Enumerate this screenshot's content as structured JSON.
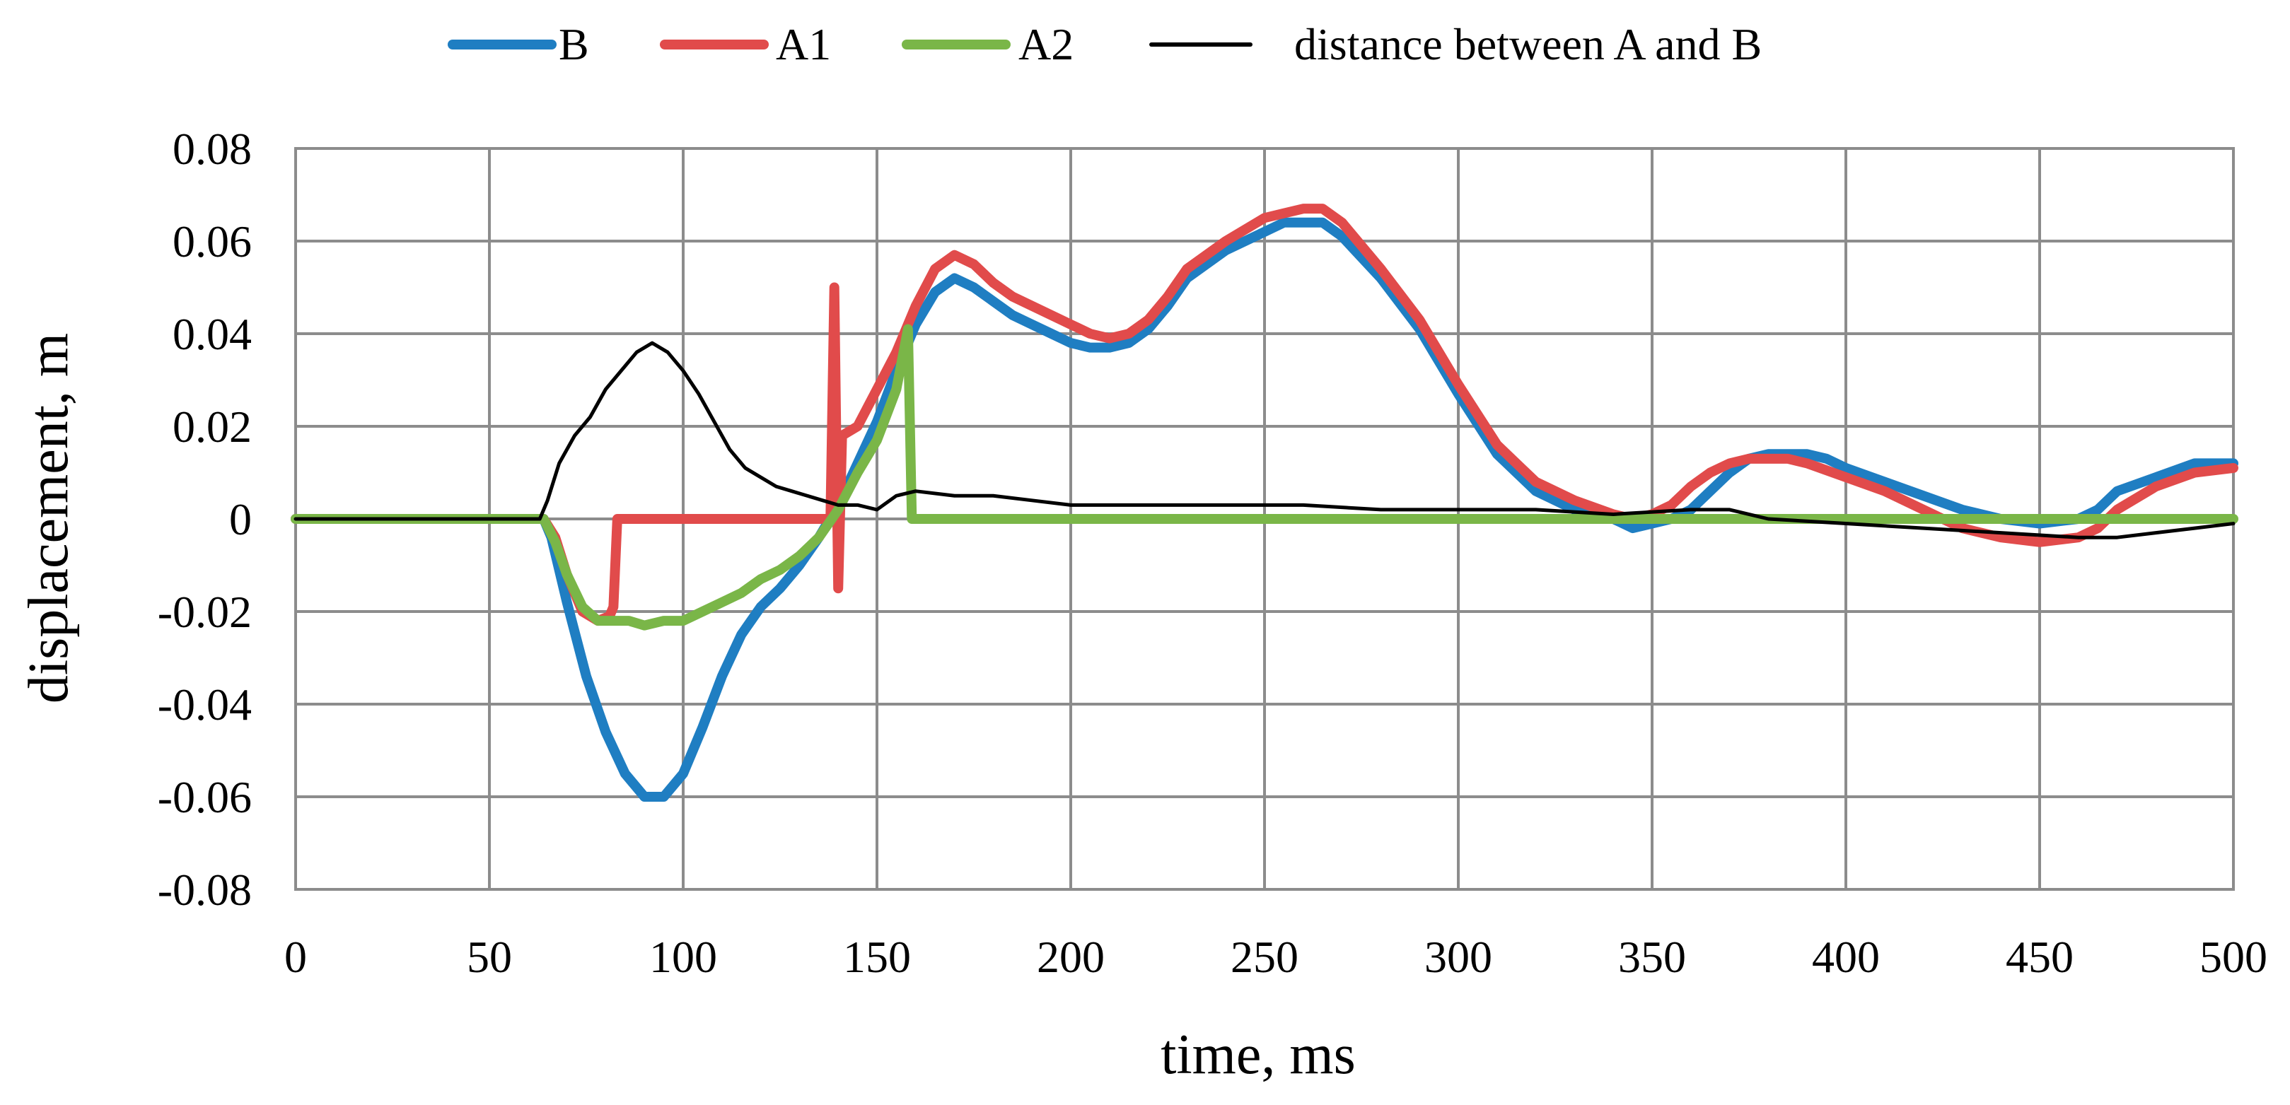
{
  "chart_data": {
    "type": "line",
    "title": "",
    "xlabel": "time, ms",
    "ylabel": "displacement, m",
    "xlim": [
      0,
      500
    ],
    "ylim": [
      -0.08,
      0.08
    ],
    "x_ticks": [
      0,
      50,
      100,
      150,
      200,
      250,
      300,
      350,
      400,
      450,
      500
    ],
    "y_ticks": [
      -0.08,
      -0.06,
      -0.04,
      -0.02,
      0,
      0.02,
      0.04,
      0.06,
      0.08
    ],
    "x_tick_labels": [
      "0",
      "50",
      "100",
      "150",
      "200",
      "250",
      "300",
      "350",
      "400",
      "450",
      "500"
    ],
    "y_tick_labels": [
      "-0.08",
      "-0.06",
      "-0.04",
      "-0.02",
      "0",
      "0.02",
      "0.04",
      "0.06",
      "0.08"
    ],
    "grid": true,
    "legend_position": "top-center",
    "series": [
      {
        "name": "B",
        "color": "#1f7ec2",
        "points": [
          [
            0,
            0
          ],
          [
            20,
            0
          ],
          [
            40,
            0
          ],
          [
            60,
            0
          ],
          [
            64,
            0
          ],
          [
            66,
            -0.004
          ],
          [
            70,
            -0.018
          ],
          [
            75,
            -0.034
          ],
          [
            80,
            -0.046
          ],
          [
            85,
            -0.055
          ],
          [
            90,
            -0.06
          ],
          [
            95,
            -0.06
          ],
          [
            100,
            -0.055
          ],
          [
            105,
            -0.045
          ],
          [
            110,
            -0.034
          ],
          [
            115,
            -0.025
          ],
          [
            120,
            -0.019
          ],
          [
            125,
            -0.015
          ],
          [
            130,
            -0.01
          ],
          [
            135,
            -0.004
          ],
          [
            140,
            0.003
          ],
          [
            145,
            0.012
          ],
          [
            150,
            0.021
          ],
          [
            155,
            0.032
          ],
          [
            160,
            0.042
          ],
          [
            165,
            0.049
          ],
          [
            170,
            0.052
          ],
          [
            175,
            0.05
          ],
          [
            180,
            0.047
          ],
          [
            185,
            0.044
          ],
          [
            190,
            0.042
          ],
          [
            195,
            0.04
          ],
          [
            200,
            0.038
          ],
          [
            205,
            0.037
          ],
          [
            210,
            0.037
          ],
          [
            215,
            0.038
          ],
          [
            220,
            0.041
          ],
          [
            225,
            0.046
          ],
          [
            230,
            0.052
          ],
          [
            240,
            0.058
          ],
          [
            250,
            0.062
          ],
          [
            255,
            0.064
          ],
          [
            260,
            0.064
          ],
          [
            265,
            0.064
          ],
          [
            270,
            0.061
          ],
          [
            280,
            0.052
          ],
          [
            290,
            0.041
          ],
          [
            300,
            0.027
          ],
          [
            310,
            0.014
          ],
          [
            320,
            0.006
          ],
          [
            330,
            0.002
          ],
          [
            340,
            0.0
          ],
          [
            345,
            -0.002
          ],
          [
            350,
            -0.001
          ],
          [
            355,
            0.0
          ],
          [
            360,
            0.002
          ],
          [
            365,
            0.006
          ],
          [
            370,
            0.01
          ],
          [
            375,
            0.013
          ],
          [
            380,
            0.014
          ],
          [
            385,
            0.014
          ],
          [
            390,
            0.014
          ],
          [
            395,
            0.013
          ],
          [
            400,
            0.011
          ],
          [
            410,
            0.008
          ],
          [
            420,
            0.005
          ],
          [
            430,
            0.002
          ],
          [
            440,
            0.0
          ],
          [
            450,
            -0.001
          ],
          [
            460,
            0.0
          ],
          [
            465,
            0.002
          ],
          [
            470,
            0.006
          ],
          [
            480,
            0.009
          ],
          [
            490,
            0.012
          ],
          [
            500,
            0.012
          ]
        ]
      },
      {
        "name": "A1",
        "color": "#e14b4b",
        "points": [
          [
            0,
            0
          ],
          [
            20,
            0
          ],
          [
            40,
            0
          ],
          [
            60,
            0
          ],
          [
            64,
            0
          ],
          [
            67,
            -0.004
          ],
          [
            70,
            -0.012
          ],
          [
            74,
            -0.02
          ],
          [
            78,
            -0.022
          ],
          [
            81,
            -0.021
          ],
          [
            82,
            -0.019
          ],
          [
            83,
            0
          ],
          [
            90,
            0
          ],
          [
            100,
            0
          ],
          [
            110,
            0
          ],
          [
            120,
            0
          ],
          [
            130,
            0
          ],
          [
            138,
            0
          ],
          [
            139,
            0.05
          ],
          [
            140,
            -0.015
          ],
          [
            141,
            0.018
          ],
          [
            145,
            0.02
          ],
          [
            150,
            0.028
          ],
          [
            155,
            0.036
          ],
          [
            160,
            0.046
          ],
          [
            165,
            0.054
          ],
          [
            170,
            0.057
          ],
          [
            175,
            0.055
          ],
          [
            180,
            0.051
          ],
          [
            185,
            0.048
          ],
          [
            190,
            0.046
          ],
          [
            195,
            0.044
          ],
          [
            200,
            0.042
          ],
          [
            205,
            0.04
          ],
          [
            210,
            0.039
          ],
          [
            215,
            0.04
          ],
          [
            220,
            0.043
          ],
          [
            225,
            0.048
          ],
          [
            230,
            0.054
          ],
          [
            240,
            0.06
          ],
          [
            250,
            0.065
          ],
          [
            255,
            0.066
          ],
          [
            260,
            0.067
          ],
          [
            265,
            0.067
          ],
          [
            270,
            0.064
          ],
          [
            280,
            0.054
          ],
          [
            290,
            0.043
          ],
          [
            300,
            0.029
          ],
          [
            310,
            0.016
          ],
          [
            320,
            0.008
          ],
          [
            330,
            0.004
          ],
          [
            340,
            0.001
          ],
          [
            345,
            0.0
          ],
          [
            350,
            0.001
          ],
          [
            355,
            0.003
          ],
          [
            360,
            0.007
          ],
          [
            365,
            0.01
          ],
          [
            370,
            0.012
          ],
          [
            375,
            0.013
          ],
          [
            380,
            0.013
          ],
          [
            385,
            0.013
          ],
          [
            390,
            0.012
          ],
          [
            400,
            0.009
          ],
          [
            410,
            0.006
          ],
          [
            420,
            0.002
          ],
          [
            430,
            -0.002
          ],
          [
            440,
            -0.004
          ],
          [
            450,
            -0.005
          ],
          [
            460,
            -0.004
          ],
          [
            465,
            -0.002
          ],
          [
            470,
            0.002
          ],
          [
            480,
            0.007
          ],
          [
            490,
            0.01
          ],
          [
            500,
            0.011
          ]
        ]
      },
      {
        "name": "A2",
        "color": "#7ab648",
        "points": [
          [
            0,
            0
          ],
          [
            20,
            0
          ],
          [
            40,
            0
          ],
          [
            60,
            0
          ],
          [
            64,
            0
          ],
          [
            67,
            -0.005
          ],
          [
            70,
            -0.012
          ],
          [
            74,
            -0.019
          ],
          [
            78,
            -0.022
          ],
          [
            82,
            -0.022
          ],
          [
            86,
            -0.022
          ],
          [
            90,
            -0.023
          ],
          [
            95,
            -0.022
          ],
          [
            100,
            -0.022
          ],
          [
            105,
            -0.02
          ],
          [
            110,
            -0.018
          ],
          [
            115,
            -0.016
          ],
          [
            120,
            -0.013
          ],
          [
            125,
            -0.011
          ],
          [
            130,
            -0.008
          ],
          [
            135,
            -0.004
          ],
          [
            140,
            0.002
          ],
          [
            145,
            0.01
          ],
          [
            150,
            0.017
          ],
          [
            155,
            0.028
          ],
          [
            158,
            0.041
          ],
          [
            159,
            0
          ],
          [
            170,
            0
          ],
          [
            200,
            0
          ],
          [
            250,
            0
          ],
          [
            300,
            0
          ],
          [
            350,
            0
          ],
          [
            400,
            0
          ],
          [
            450,
            0
          ],
          [
            500,
            0
          ]
        ]
      },
      {
        "name": "distance between A and B",
        "color": "#000000",
        "points": [
          [
            0,
            0
          ],
          [
            20,
            0
          ],
          [
            40,
            0
          ],
          [
            60,
            0
          ],
          [
            63,
            0
          ],
          [
            65,
            0.004
          ],
          [
            68,
            0.012
          ],
          [
            72,
            0.018
          ],
          [
            76,
            0.022
          ],
          [
            80,
            0.028
          ],
          [
            84,
            0.032
          ],
          [
            88,
            0.036
          ],
          [
            92,
            0.038
          ],
          [
            96,
            0.036
          ],
          [
            100,
            0.032
          ],
          [
            104,
            0.027
          ],
          [
            108,
            0.021
          ],
          [
            112,
            0.015
          ],
          [
            116,
            0.011
          ],
          [
            120,
            0.009
          ],
          [
            124,
            0.007
          ],
          [
            128,
            0.006
          ],
          [
            132,
            0.005
          ],
          [
            136,
            0.004
          ],
          [
            140,
            0.003
          ],
          [
            145,
            0.003
          ],
          [
            150,
            0.002
          ],
          [
            155,
            0.005
          ],
          [
            160,
            0.006
          ],
          [
            170,
            0.005
          ],
          [
            180,
            0.005
          ],
          [
            190,
            0.004
          ],
          [
            200,
            0.003
          ],
          [
            220,
            0.003
          ],
          [
            240,
            0.003
          ],
          [
            260,
            0.003
          ],
          [
            280,
            0.002
          ],
          [
            300,
            0.002
          ],
          [
            320,
            0.002
          ],
          [
            340,
            0.001
          ],
          [
            360,
            0.002
          ],
          [
            370,
            0.002
          ],
          [
            380,
            0.0
          ],
          [
            400,
            -0.001
          ],
          [
            420,
            -0.002
          ],
          [
            440,
            -0.003
          ],
          [
            460,
            -0.004
          ],
          [
            470,
            -0.004
          ],
          [
            480,
            -0.003
          ],
          [
            490,
            -0.002
          ],
          [
            500,
            -0.001
          ]
        ]
      }
    ]
  },
  "legend": {
    "items": [
      {
        "label": "B",
        "color": "#1f7ec2"
      },
      {
        "label": "A1",
        "color": "#e14b4b"
      },
      {
        "label": "A2",
        "color": "#7ab648"
      },
      {
        "label": "distance between A and B",
        "color": "#000000"
      }
    ]
  },
  "axes": {
    "xlabel": "time, ms",
    "ylabel": "displacement, m"
  }
}
